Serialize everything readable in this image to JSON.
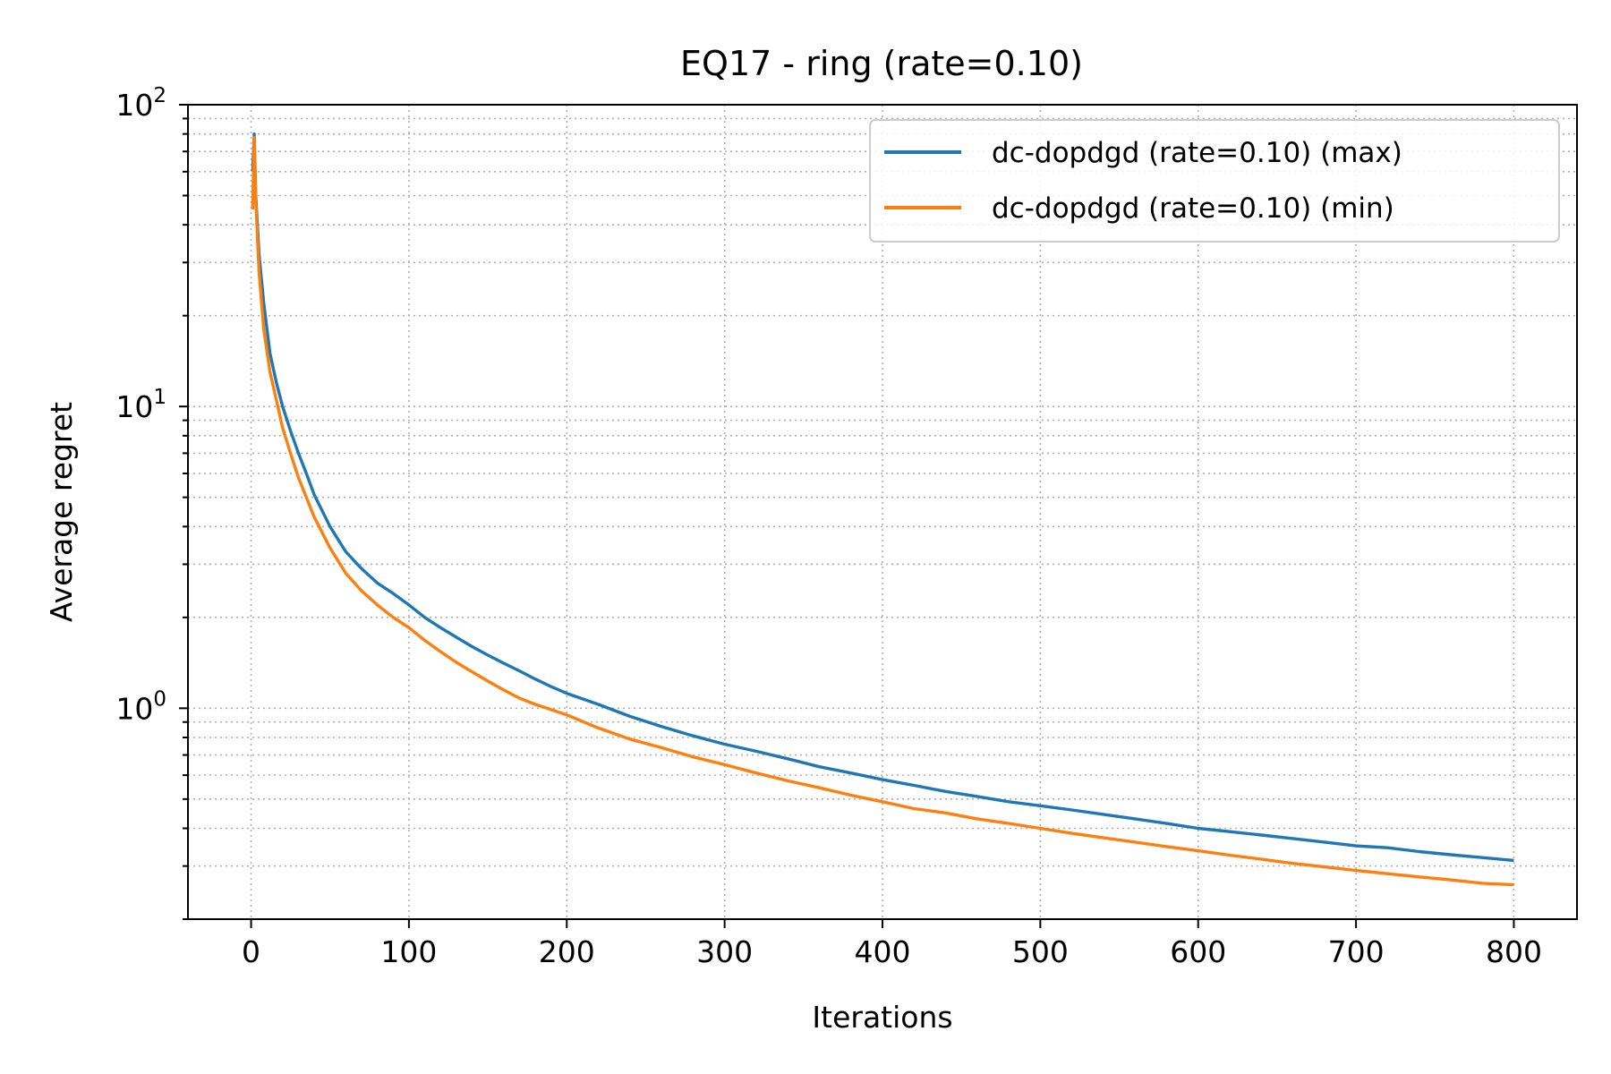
{
  "chart_data": {
    "type": "line",
    "title": "EQ17 - ring (rate=0.10)",
    "xlabel": "Iterations",
    "ylabel": "Average regret",
    "xlim": [
      -40,
      840
    ],
    "ylim": [
      0.2,
      100
    ],
    "yscale": "log",
    "grid": true,
    "grid_style": "dotted",
    "legend_position": "upper-right",
    "xticks": [
      0,
      100,
      200,
      300,
      400,
      500,
      600,
      700,
      800
    ],
    "xtick_labels": [
      "0",
      "100",
      "200",
      "300",
      "400",
      "500",
      "600",
      "700",
      "800"
    ],
    "yticks": [
      {
        "value": 1,
        "base": "10",
        "exp": "0"
      },
      {
        "value": 10,
        "base": "10",
        "exp": "1"
      },
      {
        "value": 100,
        "base": "10",
        "exp": "2"
      }
    ],
    "series": [
      {
        "name": "dc-dopdgd (rate=0.10) (max)",
        "color": "#1f77b4",
        "x": [
          1,
          2,
          3,
          5,
          8,
          12,
          16,
          20,
          25,
          30,
          35,
          40,
          50,
          60,
          70,
          80,
          90,
          100,
          110,
          120,
          130,
          140,
          150,
          160,
          170,
          180,
          190,
          200,
          220,
          240,
          260,
          280,
          300,
          320,
          340,
          360,
          380,
          400,
          420,
          440,
          460,
          480,
          500,
          520,
          540,
          560,
          580,
          600,
          620,
          640,
          660,
          680,
          700,
          720,
          740,
          760,
          780,
          800
        ],
        "y": [
          60,
          80,
          50,
          32,
          22,
          15,
          12,
          10,
          8.3,
          7.0,
          6.0,
          5.1,
          4.0,
          3.3,
          2.9,
          2.6,
          2.4,
          2.2,
          2.0,
          1.85,
          1.72,
          1.6,
          1.5,
          1.41,
          1.33,
          1.25,
          1.18,
          1.12,
          1.03,
          0.94,
          0.87,
          0.81,
          0.76,
          0.72,
          0.68,
          0.64,
          0.61,
          0.58,
          0.555,
          0.53,
          0.51,
          0.49,
          0.475,
          0.46,
          0.445,
          0.43,
          0.415,
          0.4,
          0.39,
          0.38,
          0.37,
          0.36,
          0.35,
          0.345,
          0.335,
          0.327,
          0.32,
          0.313
        ]
      },
      {
        "name": "dc-dopdgd (rate=0.10) (min)",
        "color": "#ff7f0e",
        "x": [
          1,
          2,
          3,
          5,
          8,
          12,
          16,
          20,
          25,
          30,
          35,
          40,
          50,
          60,
          70,
          80,
          90,
          100,
          110,
          120,
          130,
          140,
          150,
          160,
          170,
          180,
          190,
          200,
          220,
          240,
          260,
          280,
          300,
          320,
          340,
          360,
          380,
          400,
          420,
          440,
          460,
          480,
          500,
          520,
          540,
          560,
          580,
          600,
          620,
          640,
          660,
          680,
          700,
          720,
          740,
          760,
          780,
          800
        ],
        "y": [
          45,
          78,
          48,
          28,
          18,
          13,
          10.5,
          8.5,
          7.0,
          5.8,
          5.0,
          4.3,
          3.4,
          2.8,
          2.45,
          2.2,
          2.0,
          1.85,
          1.68,
          1.54,
          1.42,
          1.32,
          1.23,
          1.15,
          1.08,
          1.03,
          0.99,
          0.95,
          0.86,
          0.79,
          0.74,
          0.69,
          0.65,
          0.61,
          0.575,
          0.545,
          0.515,
          0.49,
          0.465,
          0.45,
          0.43,
          0.415,
          0.4,
          0.385,
          0.372,
          0.36,
          0.348,
          0.337,
          0.326,
          0.316,
          0.306,
          0.298,
          0.29,
          0.283,
          0.276,
          0.27,
          0.263,
          0.26
        ]
      }
    ]
  }
}
